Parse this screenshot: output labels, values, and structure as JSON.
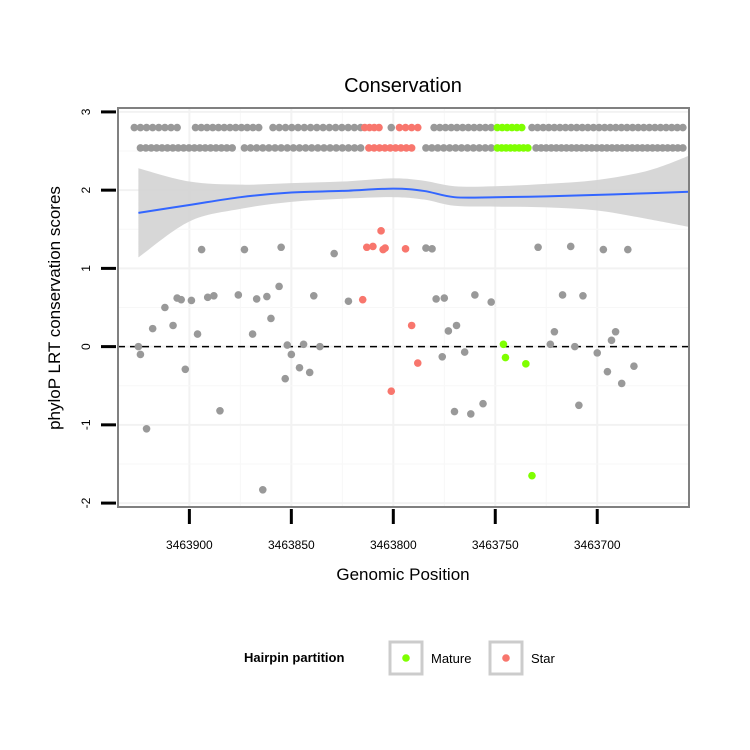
{
  "chart_data": {
    "type": "scatter",
    "title": "Conservation",
    "xlabel": "Genomic Position",
    "ylabel": "phyloP LRT conservation scores",
    "xlim": [
      3463935,
      3463655
    ],
    "x_reversed": true,
    "ylim": [
      -2.05,
      3.05
    ],
    "x_ticks": [
      3463900,
      3463850,
      3463800,
      3463750,
      3463700
    ],
    "y_ticks": [
      -2,
      -1,
      0,
      1,
      2,
      3
    ],
    "grid": true,
    "reference_line": {
      "y": 0,
      "style": "dashed"
    },
    "colors": {
      "other": "#999999",
      "Mature": "#7fff00",
      "Star": "#f8766d",
      "smooth": "#3366ff",
      "band": "#d3d3d3",
      "panel_border": "#808080"
    },
    "legend": {
      "title": "Hairpin partition",
      "position": "bottom",
      "entries": [
        {
          "label": "Mature",
          "color": "#7fff00"
        },
        {
          "label": "Star",
          "color": "#f8766d"
        }
      ]
    },
    "series": [
      {
        "key": "other",
        "points": [
          [
            3463925,
            0.0
          ],
          [
            3463924,
            -0.1
          ],
          [
            3463921,
            -1.05
          ],
          [
            3463918,
            0.23
          ],
          [
            3463912,
            0.5
          ],
          [
            3463908,
            0.27
          ],
          [
            3463906,
            0.62
          ],
          [
            3463904,
            0.6
          ],
          [
            3463902,
            -0.29
          ],
          [
            3463899,
            0.59
          ],
          [
            3463896,
            0.16
          ],
          [
            3463894,
            1.24
          ],
          [
            3463891,
            0.63
          ],
          [
            3463888,
            0.65
          ],
          [
            3463885,
            -0.82
          ],
          [
            3463876,
            0.66
          ],
          [
            3463873,
            1.24
          ],
          [
            3463869,
            0.16
          ],
          [
            3463867,
            0.61
          ],
          [
            3463864,
            -1.83
          ],
          [
            3463862,
            0.64
          ],
          [
            3463860,
            0.36
          ],
          [
            3463856,
            0.77
          ],
          [
            3463855,
            1.27
          ],
          [
            3463853,
            -0.41
          ],
          [
            3463852,
            0.02
          ],
          [
            3463850,
            -0.1
          ],
          [
            3463846,
            -0.27
          ],
          [
            3463844,
            0.03
          ],
          [
            3463841,
            -0.33
          ],
          [
            3463839,
            0.65
          ],
          [
            3463836,
            0.0
          ],
          [
            3463829,
            1.19
          ],
          [
            3463822,
            0.58
          ],
          [
            3463784,
            1.26
          ],
          [
            3463781,
            1.25
          ],
          [
            3463779,
            0.61
          ],
          [
            3463776,
            -0.13
          ],
          [
            3463775,
            0.62
          ],
          [
            3463773,
            0.2
          ],
          [
            3463770,
            -0.83
          ],
          [
            3463769,
            0.27
          ],
          [
            3463765,
            -0.07
          ],
          [
            3463762,
            -0.86
          ],
          [
            3463760,
            0.66
          ],
          [
            3463756,
            -0.73
          ],
          [
            3463752,
            0.57
          ],
          [
            3463729,
            1.27
          ],
          [
            3463723,
            0.03
          ],
          [
            3463721,
            0.19
          ],
          [
            3463717,
            0.66
          ],
          [
            3463713,
            1.28
          ],
          [
            3463711,
            0.0
          ],
          [
            3463709,
            -0.75
          ],
          [
            3463707,
            0.65
          ],
          [
            3463700,
            -0.08
          ],
          [
            3463697,
            1.24
          ],
          [
            3463695,
            -0.32
          ],
          [
            3463693,
            0.08
          ],
          [
            3463691,
            0.19
          ],
          [
            3463688,
            -0.47
          ],
          [
            3463685,
            1.24
          ],
          [
            3463682,
            -0.25
          ]
        ]
      },
      {
        "key": "Star",
        "points": [
          [
            3463815,
            0.6
          ],
          [
            3463813,
            1.27
          ],
          [
            3463810,
            1.28
          ],
          [
            3463806,
            1.48
          ],
          [
            3463805,
            1.24
          ],
          [
            3463804,
            1.26
          ],
          [
            3463801,
            -0.57
          ],
          [
            3463794,
            1.25
          ],
          [
            3463791,
            0.27
          ],
          [
            3463788,
            -0.21
          ]
        ]
      },
      {
        "key": "Mature",
        "points": [
          [
            3463746,
            0.03
          ],
          [
            3463745,
            -0.14
          ],
          [
            3463735,
            -0.22
          ],
          [
            3463732,
            -1.65
          ]
        ]
      }
    ],
    "top_strip_upper": {
      "y": 2.8,
      "segments": [
        {
          "key": "other",
          "from": 3463927,
          "to": 3463906,
          "count": 8
        },
        {
          "key": "other",
          "from": 3463897,
          "to": 3463866,
          "count": 12
        },
        {
          "key": "other",
          "from": 3463859,
          "to": 3463816,
          "count": 15
        },
        {
          "key": "Star",
          "from": 3463814,
          "to": 3463807,
          "count": 4
        },
        {
          "key": "other",
          "from": 3463801,
          "to": 3463801,
          "count": 1
        },
        {
          "key": "Star",
          "from": 3463797,
          "to": 3463788,
          "count": 4
        },
        {
          "key": "other",
          "from": 3463780,
          "to": 3463752,
          "count": 11
        },
        {
          "key": "Mature",
          "from": 3463749,
          "to": 3463737,
          "count": 6
        },
        {
          "key": "other",
          "from": 3463732,
          "to": 3463658,
          "count": 28
        }
      ]
    },
    "top_strip_lower": {
      "y": 2.54,
      "segments": [
        {
          "key": "other",
          "from": 3463924,
          "to": 3463879,
          "count": 18
        },
        {
          "key": "other",
          "from": 3463873,
          "to": 3463816,
          "count": 20
        },
        {
          "key": "Star",
          "from": 3463812,
          "to": 3463791,
          "count": 9
        },
        {
          "key": "other",
          "from": 3463784,
          "to": 3463752,
          "count": 12
        },
        {
          "key": "Mature",
          "from": 3463749,
          "to": 3463734,
          "count": 8
        },
        {
          "key": "other",
          "from": 3463730,
          "to": 3463658,
          "count": 30
        }
      ]
    },
    "smooth_curve": {
      "x": [
        3463925,
        3463900,
        3463875,
        3463850,
        3463825,
        3463800,
        3463785,
        3463770,
        3463750,
        3463725,
        3463700,
        3463675,
        3463655
      ],
      "y": [
        1.71,
        1.81,
        1.91,
        1.97,
        1.99,
        2.02,
        1.99,
        1.91,
        1.91,
        1.92,
        1.94,
        1.96,
        1.98
      ],
      "lower": [
        1.14,
        1.6,
        1.76,
        1.85,
        1.89,
        1.91,
        1.88,
        1.8,
        1.79,
        1.78,
        1.74,
        1.63,
        1.53
      ],
      "upper": [
        2.28,
        2.11,
        2.07,
        2.09,
        2.11,
        2.15,
        2.12,
        2.05,
        2.05,
        2.08,
        2.13,
        2.25,
        2.44
      ]
    }
  }
}
